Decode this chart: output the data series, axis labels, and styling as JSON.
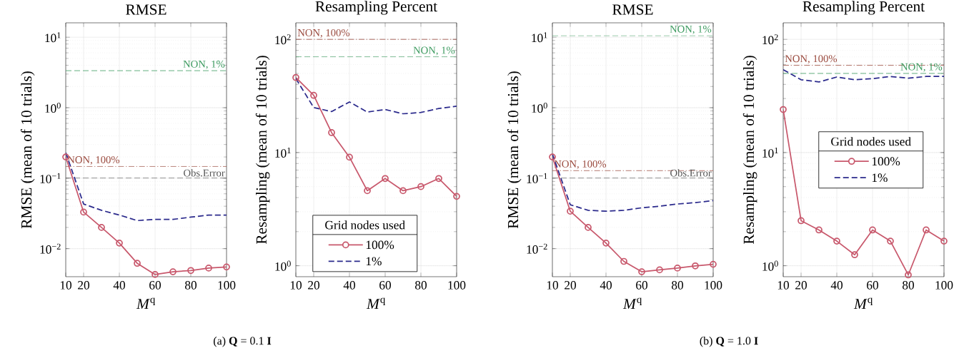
{
  "chart_data": [
    {
      "type": "line",
      "title": "RMSE",
      "xlabel": "*M*$^{q}$",
      "ylabel": "RMSE (mean of 10 trials)",
      "log": true,
      "grid": true,
      "legend": false,
      "x": [
        10,
        20,
        30,
        40,
        50,
        60,
        70,
        80,
        90,
        100
      ],
      "xlim": [
        10,
        100
      ],
      "xticks": [
        10,
        20,
        40,
        60,
        80,
        100
      ],
      "ylim": [
        0.004,
        16
      ],
      "yticks": [
        {
          "value": 0.01,
          "label": "10$^{−2}$"
        },
        {
          "value": 0.1,
          "label": "10$^{−1}$"
        },
        {
          "value": 1,
          "label": "10$^{0}$"
        },
        {
          "value": 10,
          "label": "10$^{1}$"
        }
      ],
      "series": [
        {
          "color": "#c8586c",
          "marker": "circle",
          "line_style": "solid",
          "values": [
            0.2,
            0.033,
            0.02,
            0.012,
            0.0062,
            0.0043,
            0.0047,
            0.0049,
            0.0053,
            0.0055
          ]
        },
        {
          "color": "#2b2a8c",
          "marker": "none",
          "line_style": "dashed",
          "values": [
            0.23,
            0.043,
            0.035,
            0.03,
            0.025,
            0.026,
            0.026,
            0.028,
            0.03,
            0.03
          ]
        }
      ],
      "ref_lines": [
        {
          "axis": "y",
          "value": 3.35,
          "label": "NON, 1%",
          "color": "#3c9a5f",
          "line_style": "dashed"
        },
        {
          "axis": "y",
          "value": 0.147,
          "label": "NON, 100%",
          "color": "#9a4a3e",
          "line_style": "dashdot"
        },
        {
          "axis": "y",
          "value": 0.1,
          "label": "Obs.Error",
          "color": "#555555",
          "line_style": "dashed"
        }
      ],
      "annotations": [
        "(a) **Q** = 0.1 **I**"
      ]
    },
    {
      "type": "line",
      "title": "Resampling Percent",
      "xlabel": "*M*$^{q}$",
      "ylabel": "Resampling (mean of 10 trials)",
      "log": true,
      "grid": true,
      "legend": "bottom",
      "legend_title": "Grid nodes used",
      "x": [
        10,
        20,
        30,
        40,
        50,
        60,
        70,
        80,
        90,
        100
      ],
      "xlim": [
        10,
        100
      ],
      "xticks": [
        10,
        20,
        40,
        60,
        80,
        100
      ],
      "ylim": [
        0.8,
        140
      ],
      "yticks": [
        {
          "value": 1,
          "label": "10$^{0}$"
        },
        {
          "value": 10,
          "label": "10$^{1}$"
        },
        {
          "value": 100,
          "label": "10$^{2}$"
        }
      ],
      "series": [
        {
          "name": "100%",
          "color": "#c8586c",
          "marker": "circle",
          "line_style": "solid",
          "values": [
            46,
            32,
            15,
            9.1,
            4.6,
            5.9,
            4.6,
            5.0,
            5.9,
            4.1
          ]
        },
        {
          "name": "1%",
          "color": "#2b2a8c",
          "marker": "none",
          "line_style": "dashed",
          "values": [
            45,
            25,
            23,
            28,
            22.8,
            24,
            22,
            22.6,
            24.5,
            25.7
          ]
        }
      ],
      "ref_lines": [
        {
          "axis": "y",
          "value": 100,
          "label": "NON, 100%",
          "color": "#9a4a3e",
          "line_style": "dashdot"
        },
        {
          "axis": "y",
          "value": 70,
          "label": "NON, 1%",
          "color": "#3c9a5f",
          "line_style": "dashed"
        }
      ]
    },
    {
      "type": "line",
      "title": "RMSE",
      "xlabel": "*M*$^{q}$",
      "ylabel": "RMSE (mean of 10 trials)",
      "log": true,
      "grid": true,
      "legend": false,
      "x": [
        10,
        20,
        30,
        40,
        50,
        60,
        70,
        80,
        90,
        100
      ],
      "xlim": [
        10,
        100
      ],
      "xticks": [
        10,
        20,
        40,
        60,
        80,
        100
      ],
      "ylim": [
        0.004,
        16
      ],
      "yticks": [
        {
          "value": 0.01,
          "label": "10$^{−2}$"
        },
        {
          "value": 0.1,
          "label": "10$^{−1}$"
        },
        {
          "value": 1,
          "label": "10$^{0}$"
        },
        {
          "value": 10,
          "label": "10$^{1}$"
        }
      ],
      "series": [
        {
          "color": "#c8586c",
          "marker": "circle",
          "line_style": "solid",
          "values": [
            0.2,
            0.034,
            0.02,
            0.012,
            0.0066,
            0.0047,
            0.005,
            0.0053,
            0.0057,
            0.006
          ]
        },
        {
          "color": "#2b2a8c",
          "marker": "none",
          "line_style": "dashed",
          "values": [
            0.22,
            0.042,
            0.035,
            0.034,
            0.035,
            0.038,
            0.04,
            0.043,
            0.045,
            0.048
          ]
        }
      ],
      "ref_lines": [
        {
          "axis": "y",
          "value": 10.5,
          "label": "NON, 1%",
          "color": "#3c9a5f",
          "line_style": "dashed"
        },
        {
          "axis": "y",
          "value": 0.128,
          "label": "NON, 100%",
          "color": "#9a4a3e",
          "line_style": "dashdot"
        },
        {
          "axis": "y",
          "value": 0.1,
          "label": "Obs.Error",
          "color": "#555555",
          "line_style": "dashed"
        }
      ],
      "annotations": [
        "(b) **Q** = 1.0 **I**"
      ]
    },
    {
      "type": "line",
      "title": "Resampling Percent",
      "xlabel": "*M*$^{q}$",
      "ylabel": "Resampling (mean of 10 trials)",
      "log": true,
      "grid": true,
      "legend": "right",
      "legend_title": "Grid nodes used",
      "x": [
        10,
        20,
        30,
        40,
        50,
        60,
        70,
        80,
        90,
        100
      ],
      "xlim": [
        10,
        100
      ],
      "xticks": [
        10,
        20,
        40,
        60,
        80,
        100
      ],
      "ylim": [
        0.8,
        140
      ],
      "yticks": [
        {
          "value": 1,
          "label": "10$^{0}$"
        },
        {
          "value": 10,
          "label": "10$^{1}$"
        },
        {
          "value": 100,
          "label": "10$^{2}$"
        }
      ],
      "series": [
        {
          "name": "100%",
          "color": "#c8586c",
          "marker": "circle",
          "line_style": "solid",
          "values": [
            24,
            2.5,
            2.07,
            1.65,
            1.25,
            2.07,
            1.65,
            0.83,
            2.07,
            1.65
          ]
        },
        {
          "name": "1%",
          "color": "#2b2a8c",
          "marker": "none",
          "line_style": "dashed",
          "values": [
            54,
            44,
            42,
            46.5,
            44,
            45,
            47,
            45.4,
            47,
            47
          ]
        }
      ],
      "ref_lines": [
        {
          "axis": "y",
          "value": 59,
          "label": "NON, 100%",
          "color": "#9a4a3e",
          "line_style": "dashdot"
        },
        {
          "axis": "y",
          "value": 50,
          "label": "NON, 1%",
          "color": "#3c9a5f",
          "line_style": "dashed"
        }
      ]
    }
  ]
}
